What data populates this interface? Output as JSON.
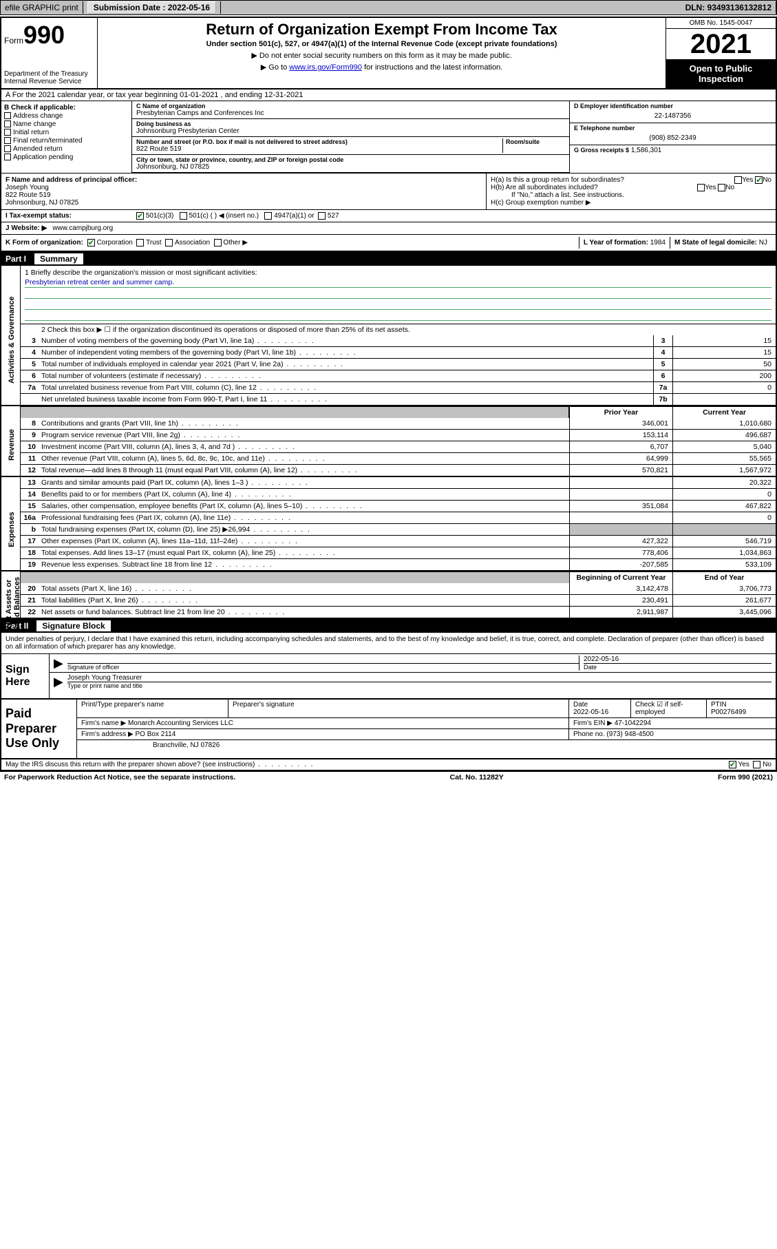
{
  "topbar": {
    "efile": "efile GRAPHIC print",
    "submission_label": "Submission Date : 2022-05-16",
    "dln": "DLN: 93493136132812"
  },
  "header": {
    "form_word": "Form",
    "form_num": "990",
    "title": "Return of Organization Exempt From Income Tax",
    "subtitle": "Under section 501(c), 527, or 4947(a)(1) of the Internal Revenue Code (except private foundations)",
    "note1": "▶ Do not enter social security numbers on this form as it may be made public.",
    "note2_pre": "▶ Go to ",
    "note2_link": "www.irs.gov/Form990",
    "note2_post": " for instructions and the latest information.",
    "dept": "Department of the Treasury\nInternal Revenue Service",
    "omb": "OMB No. 1545-0047",
    "year": "2021",
    "inspect": "Open to Public Inspection"
  },
  "row_a": "A For the 2021 calendar year, or tax year beginning 01-01-2021    , and ending 12-31-2021",
  "check_b": {
    "header": "B Check if applicable:",
    "items": [
      "Address change",
      "Name change",
      "Initial return",
      "Final return/terminated",
      "Amended return",
      "Application pending"
    ]
  },
  "org": {
    "name_lbl": "C Name of organization",
    "name": "Presbyterian Camps and Conferences Inc",
    "dba_lbl": "Doing business as",
    "dba": "Johnsonburg Presbyterian Center",
    "street_lbl": "Number and street (or P.O. box if mail is not delivered to street address)",
    "room_lbl": "Room/suite",
    "street": "822 Route 519",
    "city_lbl": "City or town, state or province, country, and ZIP or foreign postal code",
    "city": "Johnsonburg, NJ  07825"
  },
  "col_d": {
    "ein_lbl": "D Employer identification number",
    "ein": "22-1487356",
    "phone_lbl": "E Telephone number",
    "phone": "(908) 852-2349",
    "gross_lbl": "G Gross receipts $",
    "gross": "1,586,301"
  },
  "officer": {
    "lbl": "F Name and address of principal officer:",
    "name": "Joseph Young",
    "addr1": "822 Route 519",
    "addr2": "Johnsonburg, NJ  07825"
  },
  "h_section": {
    "ha": "H(a)  Is this a group return for subordinates?",
    "hb": "H(b)  Are all subordinates included?",
    "hb_note": "If \"No,\" attach a list. See instructions.",
    "hc": "H(c)  Group exemption number ▶",
    "yes": "Yes",
    "no": "No"
  },
  "tax_status": {
    "lbl": "I   Tax-exempt status:",
    "opt1": "501(c)(3)",
    "opt2": "501(c) (   ) ◀ (insert no.)",
    "opt3": "4947(a)(1) or",
    "opt4": "527"
  },
  "website": {
    "lbl": "J   Website: ▶",
    "val": "www.campjburg.org"
  },
  "korg": {
    "lbl": "K Form of organization:",
    "opts": [
      "Corporation",
      "Trust",
      "Association",
      "Other ▶"
    ],
    "l_lbl": "L Year of formation:",
    "l_val": "1984",
    "m_lbl": "M State of legal domicile:",
    "m_val": "NJ"
  },
  "part1": {
    "num": "Part I",
    "title": "Summary"
  },
  "mission": {
    "line1_lbl": "1   Briefly describe the organization's mission or most significant activities:",
    "text": "Presbyterian retreat center and summer camp."
  },
  "governance_lines": {
    "l2": "2   Check this box ▶ ☐  if the organization discontinued its operations or disposed of more than 25% of its net assets.",
    "rows": [
      {
        "n": "3",
        "d": "Number of voting members of the governing body (Part VI, line 1a)",
        "box": "3",
        "v": "15"
      },
      {
        "n": "4",
        "d": "Number of independent voting members of the governing body (Part VI, line 1b)",
        "box": "4",
        "v": "15"
      },
      {
        "n": "5",
        "d": "Total number of individuals employed in calendar year 2021 (Part V, line 2a)",
        "box": "5",
        "v": "50"
      },
      {
        "n": "6",
        "d": "Total number of volunteers (estimate if necessary)",
        "box": "6",
        "v": "200"
      },
      {
        "n": "7a",
        "d": "Total unrelated business revenue from Part VIII, column (C), line 12",
        "box": "7a",
        "v": "0"
      },
      {
        "n": "",
        "d": "Net unrelated business taxable income from Form 990-T, Part I, line 11",
        "box": "7b",
        "v": ""
      }
    ]
  },
  "col_headers": {
    "prior": "Prior Year",
    "current": "Current Year",
    "boy": "Beginning of Current Year",
    "eoy": "End of Year"
  },
  "revenue": [
    {
      "n": "8",
      "d": "Contributions and grants (Part VIII, line 1h)",
      "p": "346,001",
      "c": "1,010,680"
    },
    {
      "n": "9",
      "d": "Program service revenue (Part VIII, line 2g)",
      "p": "153,114",
      "c": "496,687"
    },
    {
      "n": "10",
      "d": "Investment income (Part VIII, column (A), lines 3, 4, and 7d )",
      "p": "6,707",
      "c": "5,040"
    },
    {
      "n": "11",
      "d": "Other revenue (Part VIII, column (A), lines 5, 6d, 8c, 9c, 10c, and 11e)",
      "p": "64,999",
      "c": "55,565"
    },
    {
      "n": "12",
      "d": "Total revenue—add lines 8 through 11 (must equal Part VIII, column (A), line 12)",
      "p": "570,821",
      "c": "1,567,972"
    }
  ],
  "expenses": [
    {
      "n": "13",
      "d": "Grants and similar amounts paid (Part IX, column (A), lines 1–3 )",
      "p": "",
      "c": "20,322"
    },
    {
      "n": "14",
      "d": "Benefits paid to or for members (Part IX, column (A), line 4)",
      "p": "",
      "c": "0"
    },
    {
      "n": "15",
      "d": "Salaries, other compensation, employee benefits (Part IX, column (A), lines 5–10)",
      "p": "351,084",
      "c": "467,822"
    },
    {
      "n": "16a",
      "d": "Professional fundraising fees (Part IX, column (A), line 11e)",
      "p": "",
      "c": "0"
    },
    {
      "n": "b",
      "d": "Total fundraising expenses (Part IX, column (D), line 25) ▶26,994",
      "p": "shade",
      "c": "shade"
    },
    {
      "n": "17",
      "d": "Other expenses (Part IX, column (A), lines 11a–11d, 11f–24e)",
      "p": "427,322",
      "c": "546,719"
    },
    {
      "n": "18",
      "d": "Total expenses. Add lines 13–17 (must equal Part IX, column (A), line 25)",
      "p": "778,406",
      "c": "1,034,863"
    },
    {
      "n": "19",
      "d": "Revenue less expenses. Subtract line 18 from line 12",
      "p": "-207,585",
      "c": "533,109"
    }
  ],
  "netassets": [
    {
      "n": "20",
      "d": "Total assets (Part X, line 16)",
      "p": "3,142,478",
      "c": "3,706,773"
    },
    {
      "n": "21",
      "d": "Total liabilities (Part X, line 26)",
      "p": "230,491",
      "c": "261,677"
    },
    {
      "n": "22",
      "d": "Net assets or fund balances. Subtract line 21 from line 20",
      "p": "2,911,987",
      "c": "3,445,096"
    }
  ],
  "side_labels": {
    "gov": "Activities & Governance",
    "rev": "Revenue",
    "exp": "Expenses",
    "net": "Net Assets or\nFund Balances"
  },
  "part2": {
    "num": "Part II",
    "title": "Signature Block"
  },
  "sig": {
    "intro": "Under penalties of perjury, I declare that I have examined this return, including accompanying schedules and statements, and to the best of my knowledge and belief, it is true, correct, and complete. Declaration of preparer (other than officer) is based on all information of which preparer has any knowledge.",
    "sign_here": "Sign Here",
    "officer_sig": "Signature of officer",
    "date_val": "2022-05-16",
    "date_lbl": "Date",
    "officer_name": "Joseph Young Treasurer",
    "officer_name_lbl": "Type or print name and title"
  },
  "prep": {
    "title": "Paid Preparer Use Only",
    "h1": "Print/Type preparer's name",
    "h2": "Preparer's signature",
    "h3": "Date",
    "h3v": "2022-05-16",
    "h4": "Check ☑ if self-employed",
    "h5": "PTIN",
    "h5v": "P00276499",
    "firm_lbl": "Firm's name    ▶",
    "firm": "Monarch Accounting Services LLC",
    "ein_lbl": "Firm's EIN ▶",
    "ein": "47-1042294",
    "addr_lbl": "Firm's address ▶",
    "addr1": "PO Box 2114",
    "addr2": "Branchville, NJ  07826",
    "phone_lbl": "Phone no.",
    "phone": "(973) 948-4500"
  },
  "footer": {
    "discuss": "May the IRS discuss this return with the preparer shown above? (see instructions)",
    "yes": "Yes",
    "no": "No",
    "pra": "For Paperwork Reduction Act Notice, see the separate instructions.",
    "cat": "Cat. No. 11282Y",
    "form": "Form 990 (2021)"
  }
}
